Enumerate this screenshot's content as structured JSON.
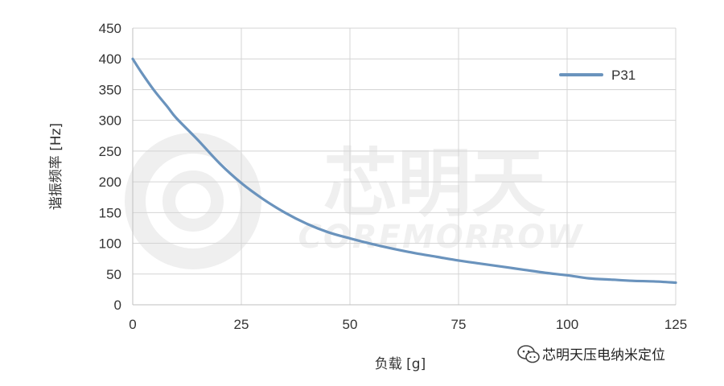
{
  "chart_data": {
    "type": "line",
    "title": "",
    "xlabel": "负载 [g]",
    "ylabel": "谐振频率 [Hz]",
    "xlim": [
      0,
      125
    ],
    "ylim": [
      0,
      450
    ],
    "x_ticks": [
      "0",
      "25",
      "50",
      "75",
      "100",
      "125"
    ],
    "y_ticks": [
      "0",
      "50",
      "100",
      "150",
      "200",
      "250",
      "300",
      "350",
      "400",
      "450"
    ],
    "grid": true,
    "legend_position": "top-right",
    "series": [
      {
        "name": "P31",
        "color": "#6a93bd",
        "x": [
          0,
          2,
          5,
          8,
          10,
          15,
          20,
          25,
          30,
          35,
          40,
          45,
          50,
          55,
          60,
          65,
          70,
          75,
          80,
          85,
          90,
          95,
          100,
          105,
          110,
          115,
          120,
          125
        ],
        "y": [
          400,
          378,
          348,
          322,
          304,
          268,
          230,
          198,
          172,
          150,
          132,
          118,
          108,
          99,
          91,
          84,
          78,
          72,
          67,
          62,
          57,
          52,
          48,
          43,
          41,
          39,
          38,
          36
        ]
      }
    ]
  },
  "watermark": {
    "chinese": "芯明天",
    "english": "COREMORROW",
    "color": "#ededed"
  },
  "footer": {
    "icon": "wechat-icon",
    "account": "芯明天压电纳米定位"
  }
}
